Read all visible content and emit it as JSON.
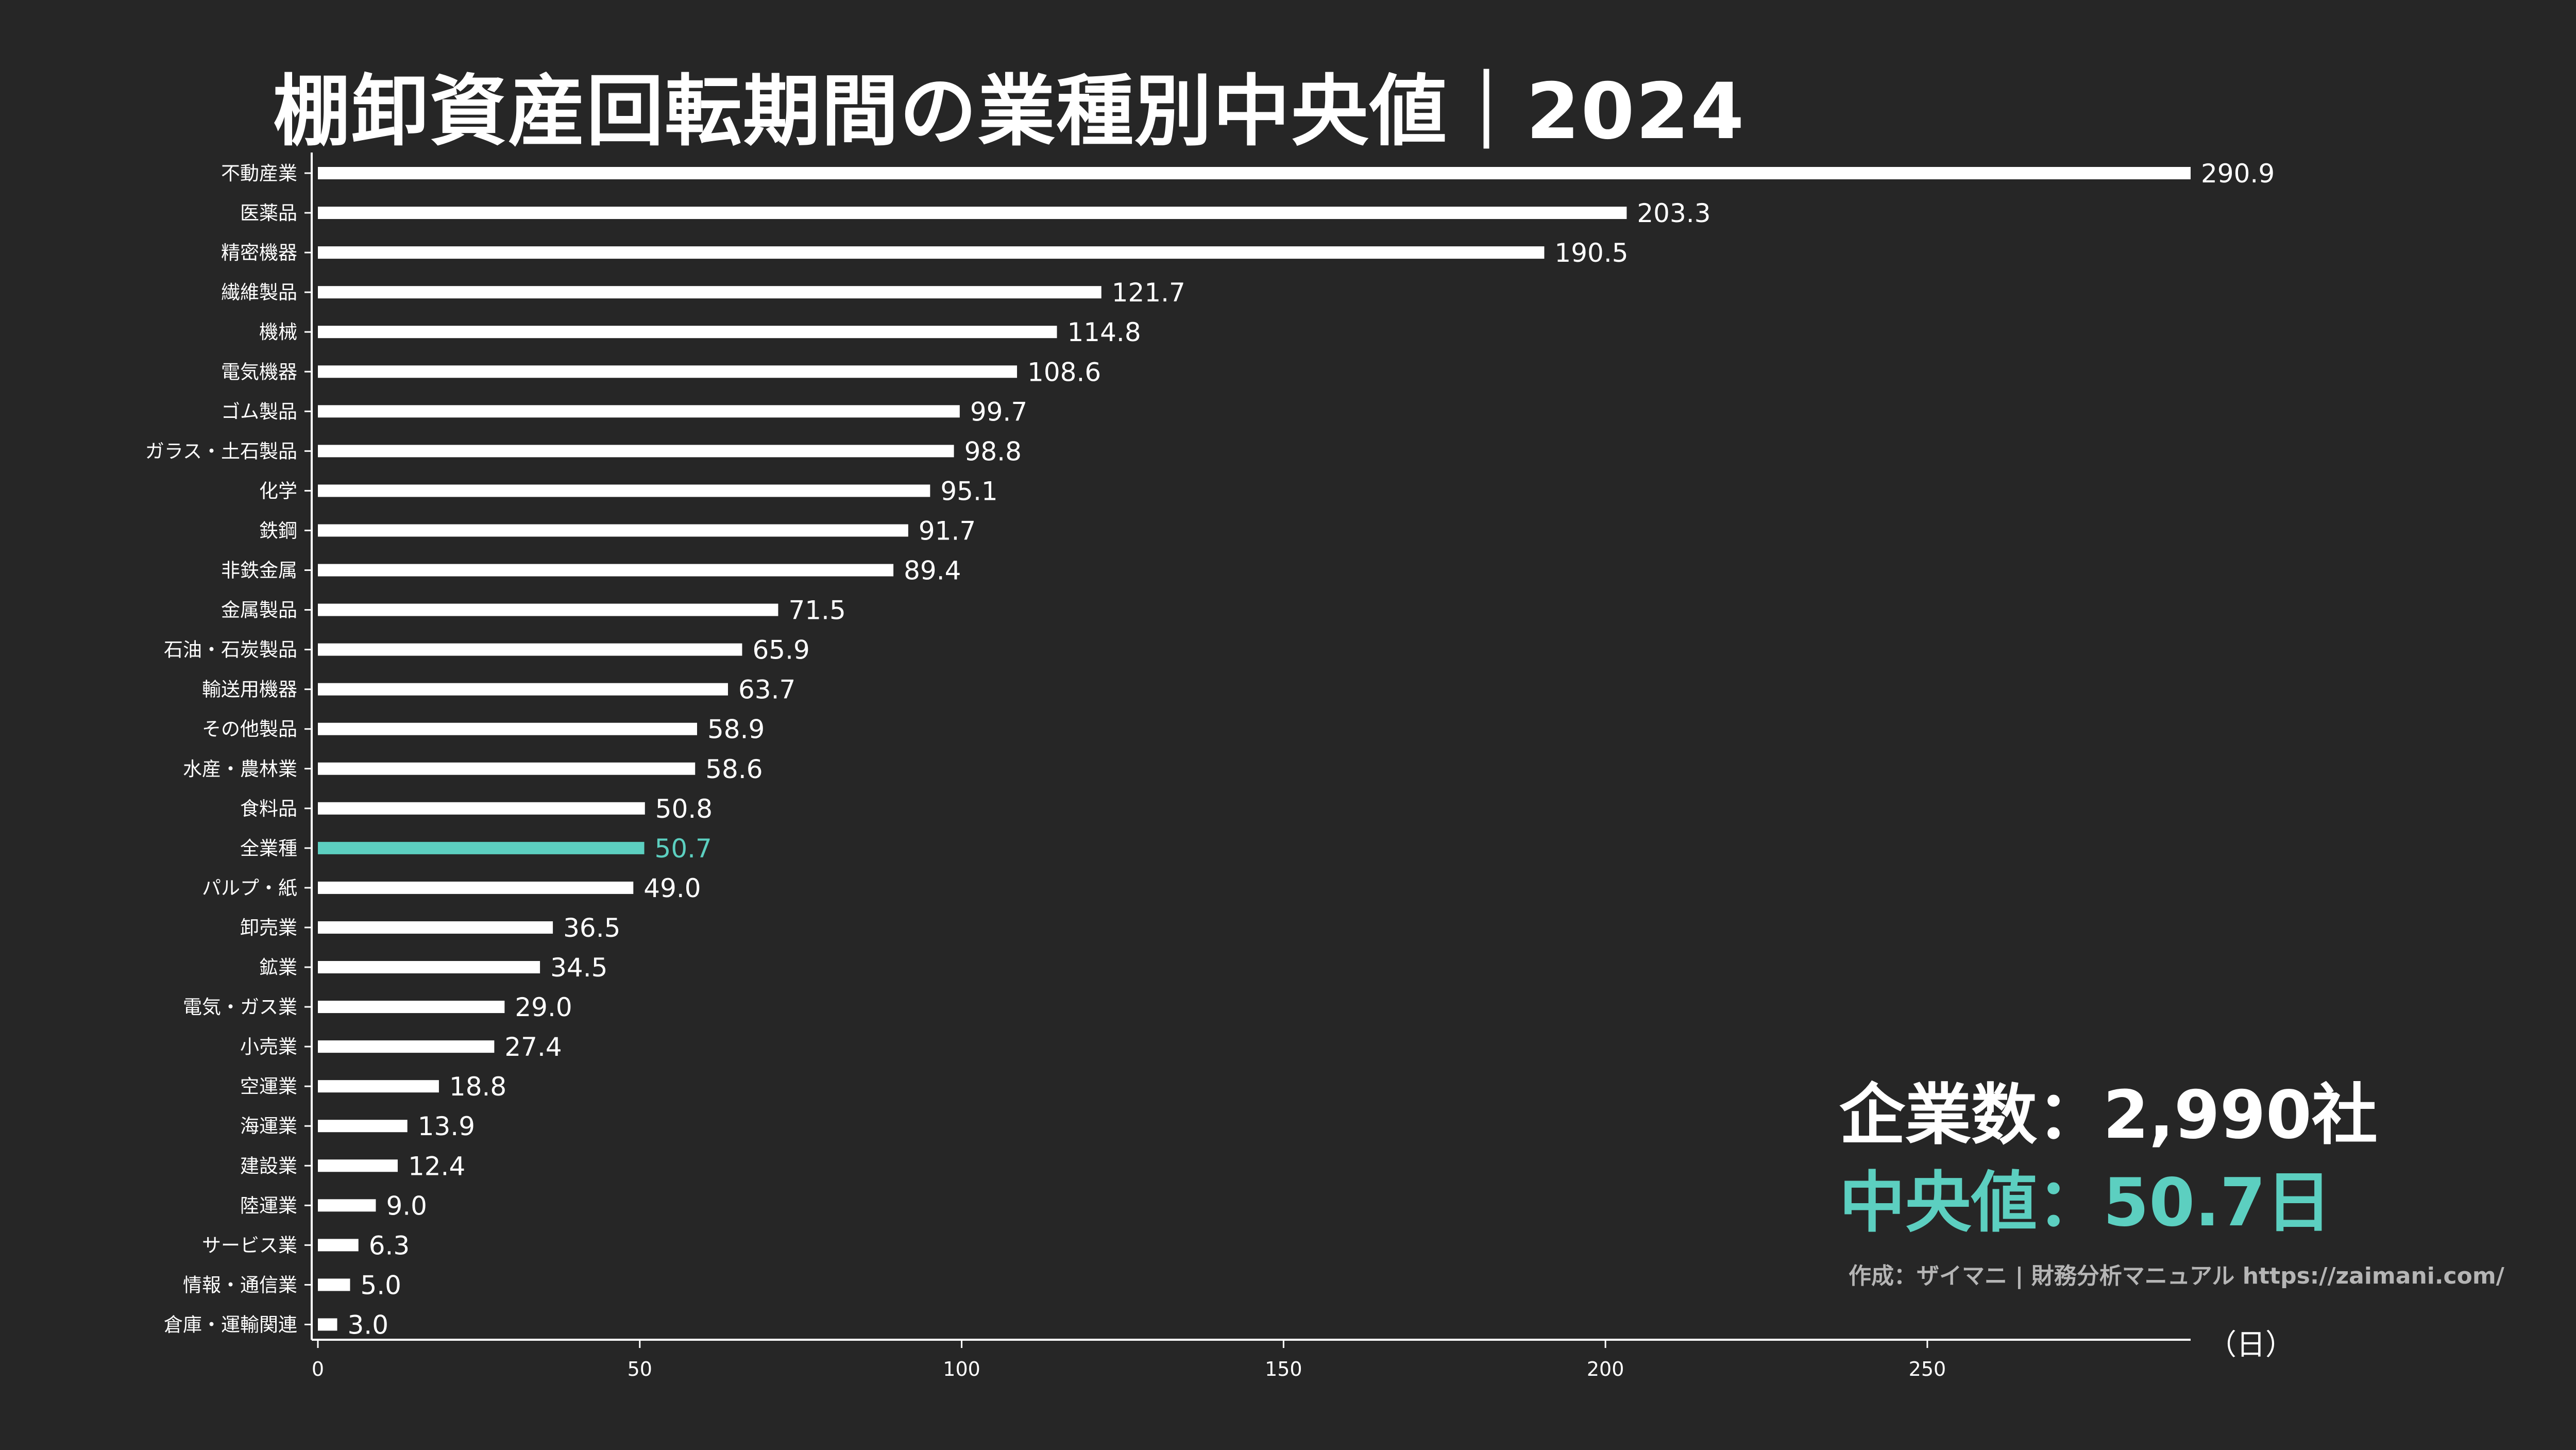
{
  "title": "棚卸資産回転期間の業種別中央値｜2024",
  "unit_label": "（日）",
  "stats": {
    "count_label": "企業数：",
    "count_value": "2,990社",
    "median_label": "中央値：",
    "median_value": "50.7日"
  },
  "credit": "作成：ザイマニ | 財務分析マニュアル https://zaimani.com/",
  "colors": {
    "background": "#262626",
    "bar": "#ffffff",
    "highlight": "#5ccfc0"
  },
  "chart_data": {
    "type": "bar",
    "orientation": "horizontal",
    "categories": [
      "不動産業",
      "医薬品",
      "精密機器",
      "繊維製品",
      "機械",
      "電気機器",
      "ゴム製品",
      "ガラス・土石製品",
      "化学",
      "鉄鋼",
      "非鉄金属",
      "金属製品",
      "石油・石炭製品",
      "輸送用機器",
      "その他製品",
      "水産・農林業",
      "食料品",
      "全業種",
      "パルプ・紙",
      "卸売業",
      "鉱業",
      "電気・ガス業",
      "小売業",
      "空運業",
      "海運業",
      "建設業",
      "陸運業",
      "サービス業",
      "情報・通信業",
      "倉庫・運輸関連"
    ],
    "values": [
      290.9,
      203.3,
      190.5,
      121.7,
      114.8,
      108.6,
      99.7,
      98.8,
      95.1,
      91.7,
      89.4,
      71.5,
      65.9,
      63.7,
      58.9,
      58.6,
      50.8,
      50.7,
      49.0,
      36.5,
      34.5,
      29.0,
      27.4,
      18.8,
      13.9,
      12.4,
      9.0,
      6.3,
      5.0,
      3.0
    ],
    "value_labels": [
      "290.9",
      "203.3",
      "190.5",
      "121.7",
      "114.8",
      "108.6",
      "99.7",
      "98.8",
      "95.1",
      "91.7",
      "89.4",
      "71.5",
      "65.9",
      "63.7",
      "58.9",
      "58.6",
      "50.8",
      "50.7",
      "49.0",
      "36.5",
      "34.5",
      "29.0",
      "27.4",
      "18.8",
      "13.9",
      "12.4",
      "9.0",
      "6.3",
      "5.0",
      "3.0"
    ],
    "highlight_category": "全業種",
    "xlim": [
      0,
      290.9
    ],
    "xticks": [
      0,
      50,
      100,
      150,
      200,
      250
    ],
    "xtick_labels": [
      "0",
      "50",
      "100",
      "150",
      "200",
      "250"
    ],
    "grid": false
  }
}
